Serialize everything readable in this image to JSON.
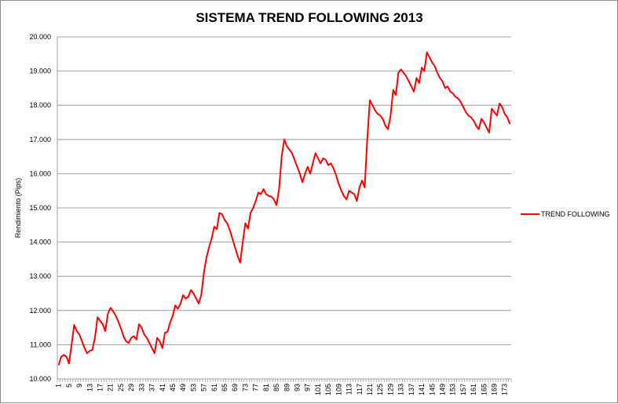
{
  "chart_data": {
    "type": "line",
    "title": "SISTEMA TREND FOLLOWING 2013",
    "xlabel": "",
    "ylabel": "Rendimiento (Pips)",
    "ylim": [
      10000,
      20000
    ],
    "ytick_labels": [
      "10.000",
      "11.000",
      "12.000",
      "13.000",
      "14.000",
      "15.000",
      "16.000",
      "17.000",
      "18.000",
      "19.000",
      "20.000"
    ],
    "xtick_labels": [
      "1",
      "5",
      "9",
      "13",
      "17",
      "21",
      "25",
      "29",
      "33",
      "37",
      "41",
      "45",
      "49",
      "53",
      "57",
      "61",
      "65",
      "69",
      "73",
      "77",
      "81",
      "85",
      "89",
      "93",
      "97",
      "101",
      "105",
      "109",
      "113",
      "117",
      "121",
      "125",
      "129",
      "133",
      "137",
      "141",
      "145",
      "149",
      "153",
      "157",
      "161",
      "165",
      "169",
      "173"
    ],
    "grid": true,
    "legend_position": "right",
    "series": [
      {
        "name": "TREND FOLLOWING",
        "color": "#ff0000",
        "x": [
          1,
          2,
          3,
          4,
          5,
          6,
          7,
          8,
          9,
          10,
          11,
          12,
          13,
          14,
          15,
          16,
          17,
          18,
          19,
          20,
          21,
          22,
          23,
          24,
          25,
          26,
          27,
          28,
          29,
          30,
          31,
          32,
          33,
          34,
          35,
          36,
          37,
          38,
          39,
          40,
          41,
          42,
          43,
          44,
          45,
          46,
          47,
          48,
          49,
          50,
          51,
          52,
          53,
          54,
          55,
          56,
          57,
          58,
          59,
          60,
          61,
          62,
          63,
          64,
          65,
          66,
          67,
          68,
          69,
          70,
          71,
          72,
          73,
          74,
          75,
          76,
          77,
          78,
          79,
          80,
          81,
          82,
          83,
          84,
          85,
          86,
          87,
          88,
          89,
          90,
          91,
          92,
          93,
          94,
          95,
          96,
          97,
          98,
          99,
          100,
          101,
          102,
          103,
          104,
          105,
          106,
          107,
          108,
          109,
          110,
          111,
          112,
          113,
          114,
          115,
          116,
          117,
          118,
          119,
          120,
          121,
          122,
          123,
          124,
          125,
          126,
          127,
          128,
          129,
          130,
          131,
          132,
          133,
          134,
          135,
          136,
          137,
          138,
          139,
          140,
          141,
          142,
          143,
          144,
          145,
          146,
          147,
          148,
          149,
          150,
          151,
          152,
          153,
          154,
          155,
          156,
          157,
          158,
          159,
          160,
          161,
          162,
          163,
          164,
          165,
          166,
          167,
          168,
          169,
          170,
          171,
          172,
          173,
          174,
          175
        ],
        "values": [
          10400,
          10650,
          10700,
          10650,
          10450,
          11000,
          11580,
          11400,
          11300,
          11100,
          10900,
          10750,
          10820,
          10850,
          11200,
          11800,
          11700,
          11600,
          11400,
          11900,
          12080,
          11980,
          11850,
          11680,
          11480,
          11250,
          11100,
          11050,
          11200,
          11250,
          11150,
          11600,
          11500,
          11300,
          11200,
          11050,
          10900,
          10750,
          11200,
          11100,
          10900,
          11350,
          11380,
          11650,
          11850,
          12150,
          12050,
          12200,
          12450,
          12350,
          12400,
          12600,
          12500,
          12350,
          12200,
          12450,
          13100,
          13550,
          13850,
          14100,
          14450,
          14380,
          14850,
          14820,
          14650,
          14550,
          14350,
          14100,
          13850,
          13600,
          13400,
          14000,
          14550,
          14400,
          14850,
          15000,
          15200,
          15450,
          15400,
          15550,
          15400,
          15350,
          15330,
          15250,
          15080,
          15550,
          16500,
          17000,
          16800,
          16700,
          16600,
          16400,
          16200,
          16000,
          15750,
          16000,
          16200,
          16000,
          16300,
          16600,
          16450,
          16300,
          16450,
          16400,
          16250,
          16300,
          16150,
          15950,
          15700,
          15500,
          15350,
          15250,
          15500,
          15450,
          15400,
          15200,
          15600,
          15800,
          15600,
          17000,
          18150,
          18000,
          17850,
          17750,
          17700,
          17600,
          17400,
          17300,
          17700,
          18450,
          18300,
          18950,
          19050,
          18950,
          18850,
          18700,
          18550,
          18400,
          18800,
          18650,
          19100,
          19000,
          19550,
          19400,
          19250,
          19150,
          18950,
          18800,
          18700,
          18500,
          18550,
          18400,
          18350,
          18250,
          18200,
          18100,
          17950,
          17800,
          17700,
          17650,
          17550,
          17400,
          17300,
          17600,
          17500,
          17350,
          17200,
          17900,
          17800,
          17700,
          18050,
          17950,
          17750,
          17650,
          17450
        ]
      }
    ]
  }
}
